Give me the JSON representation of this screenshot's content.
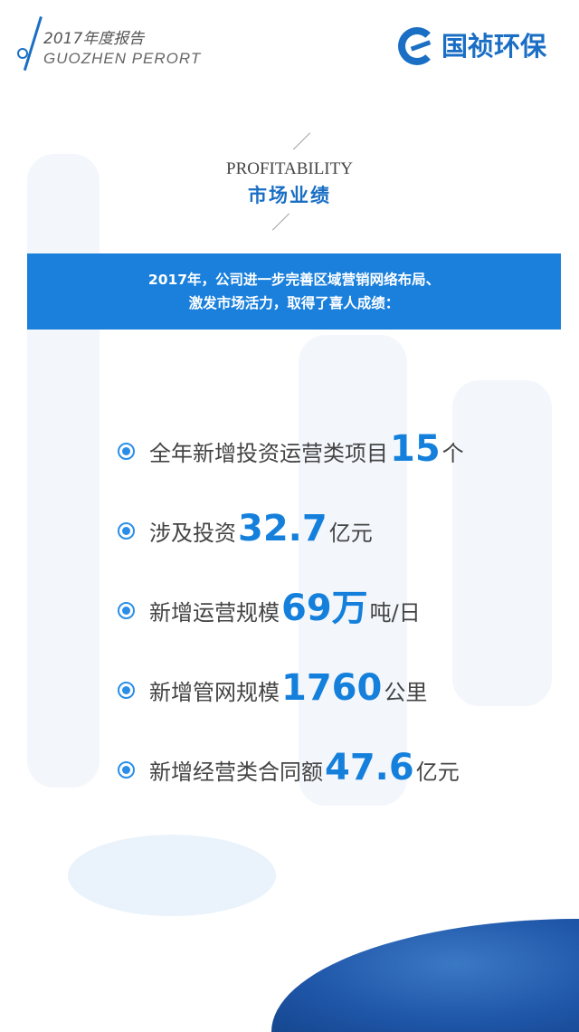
{
  "header": {
    "year_title": "2017年度报告",
    "subtitle": "GUOZHEN PERORT",
    "logo_text": "国祯环保"
  },
  "section": {
    "title_en": "PROFITABILITY",
    "title_cn": "市场业绩"
  },
  "banner": {
    "line1": "2017年，公司进一步完善区域营销网络布局、",
    "line2": "激发市场活力，取得了喜人成绩："
  },
  "items": [
    {
      "prefix": "全年新增投资运营类项目",
      "value": "15",
      "suffix": "个"
    },
    {
      "prefix": "涉及投资",
      "value": "32.7",
      "suffix": "亿元"
    },
    {
      "prefix": "新增运营规模",
      "value": "69万",
      "suffix": "吨/日"
    },
    {
      "prefix": "新增管网规模",
      "value": "1760",
      "suffix": "公里"
    },
    {
      "prefix": "新增经营类合同额",
      "value": "47.6",
      "suffix": "亿元"
    }
  ],
  "colors": {
    "brand": "#1a6fc4",
    "banner": "#1a80dc",
    "highlight": "#1480dc"
  }
}
